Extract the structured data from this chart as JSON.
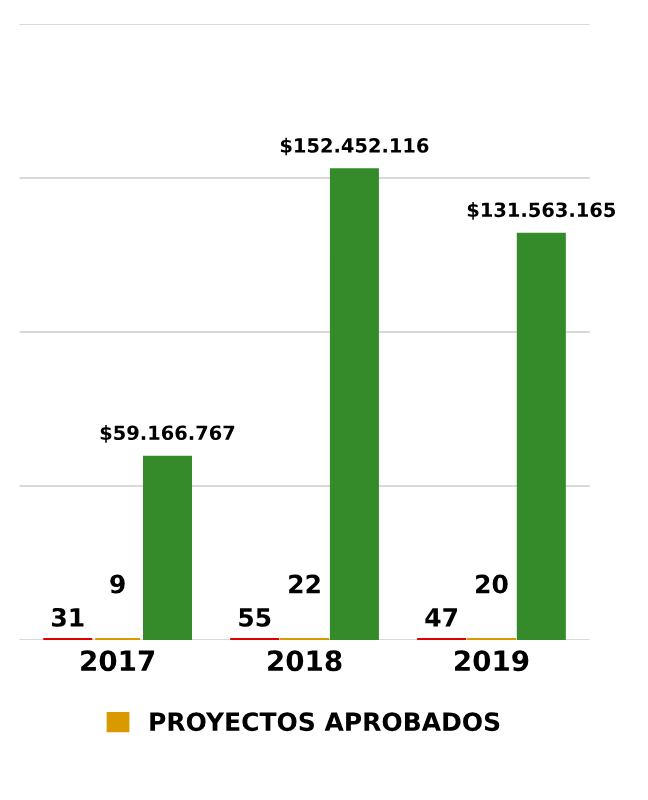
{
  "chart_data": {
    "type": "bar",
    "categories": [
      "2017",
      "2018",
      "2019"
    ],
    "series": [
      {
        "color": "#e00000",
        "values": [
          31,
          55,
          47
        ],
        "value_labels": [
          "31",
          "55",
          "47"
        ]
      },
      {
        "name": "PROYECTOS APROBADOS",
        "color": "#d99a00",
        "values": [
          9,
          22,
          20
        ],
        "value_labels": [
          "9",
          "22",
          "20"
        ]
      },
      {
        "color": "#358a2a",
        "values": [
          59166767,
          152452116,
          131563165
        ],
        "value_labels": [
          "$59.166.767",
          "$152.452.116",
          "$131.563.165"
        ]
      }
    ],
    "ylim": [
      0,
      200000000
    ],
    "yticks": [
      {
        "value": 0,
        "label": null
      },
      {
        "value": 50000000,
        "label": null
      },
      {
        "value": 100000000,
        "label": null
      },
      {
        "value": 150000000,
        "label": null
      },
      {
        "value": 200000000,
        "label": null
      }
    ],
    "tick_labels": "x",
    "grid": "y",
    "legend": "bottom"
  }
}
